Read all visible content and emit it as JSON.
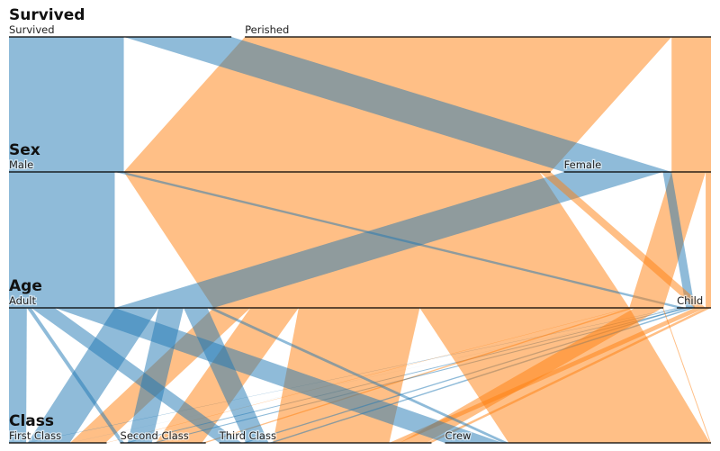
{
  "chart_data": {
    "type": "parallel-sets",
    "dimensions": [
      {
        "name": "Survived",
        "categories": [
          "Survived",
          "Perished"
        ]
      },
      {
        "name": "Sex",
        "categories": [
          "Male",
          "Female"
        ]
      },
      {
        "name": "Age",
        "categories": [
          "Adult",
          "Child"
        ]
      },
      {
        "name": "Class",
        "categories": [
          "First Class",
          "Second Class",
          "Third Class",
          "Crew"
        ]
      }
    ],
    "color_by": "Survived",
    "colors": {
      "Survived": "#1f77b4",
      "Perished": "#ff7f0e"
    },
    "rows": [
      {
        "Class": "First Class",
        "Sex": "Male",
        "Age": "Adult",
        "Survived": "Perished",
        "count": 118
      },
      {
        "Class": "First Class",
        "Sex": "Male",
        "Age": "Adult",
        "Survived": "Survived",
        "count": 57
      },
      {
        "Class": "First Class",
        "Sex": "Male",
        "Age": "Child",
        "Survived": "Survived",
        "count": 5
      },
      {
        "Class": "First Class",
        "Sex": "Female",
        "Age": "Adult",
        "Survived": "Perished",
        "count": 4
      },
      {
        "Class": "First Class",
        "Sex": "Female",
        "Age": "Adult",
        "Survived": "Survived",
        "count": 140
      },
      {
        "Class": "First Class",
        "Sex": "Female",
        "Age": "Child",
        "Survived": "Survived",
        "count": 1
      },
      {
        "Class": "Second Class",
        "Sex": "Male",
        "Age": "Adult",
        "Survived": "Perished",
        "count": 154
      },
      {
        "Class": "Second Class",
        "Sex": "Male",
        "Age": "Adult",
        "Survived": "Survived",
        "count": 14
      },
      {
        "Class": "Second Class",
        "Sex": "Male",
        "Age": "Child",
        "Survived": "Survived",
        "count": 11
      },
      {
        "Class": "Second Class",
        "Sex": "Female",
        "Age": "Adult",
        "Survived": "Perished",
        "count": 13
      },
      {
        "Class": "Second Class",
        "Sex": "Female",
        "Age": "Adult",
        "Survived": "Survived",
        "count": 80
      },
      {
        "Class": "Second Class",
        "Sex": "Female",
        "Age": "Child",
        "Survived": "Survived",
        "count": 13
      },
      {
        "Class": "Third Class",
        "Sex": "Male",
        "Age": "Adult",
        "Survived": "Perished",
        "count": 387
      },
      {
        "Class": "Third Class",
        "Sex": "Male",
        "Age": "Adult",
        "Survived": "Survived",
        "count": 75
      },
      {
        "Class": "Third Class",
        "Sex": "Male",
        "Age": "Child",
        "Survived": "Perished",
        "count": 35
      },
      {
        "Class": "Third Class",
        "Sex": "Male",
        "Age": "Child",
        "Survived": "Survived",
        "count": 13
      },
      {
        "Class": "Third Class",
        "Sex": "Female",
        "Age": "Adult",
        "Survived": "Perished",
        "count": 89
      },
      {
        "Class": "Third Class",
        "Sex": "Female",
        "Age": "Adult",
        "Survived": "Survived",
        "count": 76
      },
      {
        "Class": "Third Class",
        "Sex": "Female",
        "Age": "Child",
        "Survived": "Perished",
        "count": 17
      },
      {
        "Class": "Third Class",
        "Sex": "Female",
        "Age": "Child",
        "Survived": "Survived",
        "count": 14
      },
      {
        "Class": "Crew",
        "Sex": "Male",
        "Age": "Adult",
        "Survived": "Perished",
        "count": 670
      },
      {
        "Class": "Crew",
        "Sex": "Male",
        "Age": "Adult",
        "Survived": "Survived",
        "count": 192
      },
      {
        "Class": "Crew",
        "Sex": "Female",
        "Age": "Adult",
        "Survived": "Perished",
        "count": 3
      },
      {
        "Class": "Crew",
        "Sex": "Female",
        "Age": "Adult",
        "Survived": "Survived",
        "count": 20
      }
    ]
  }
}
